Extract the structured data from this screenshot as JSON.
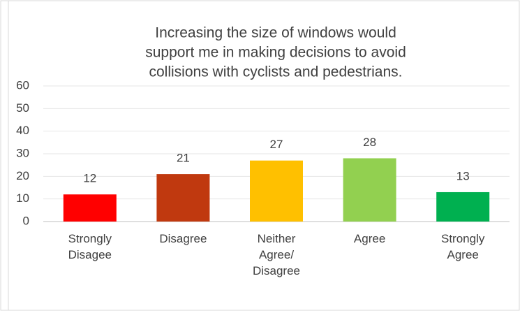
{
  "chart_data": {
    "type": "bar",
    "title": [
      "Increasing the size of windows would",
      "support me in making decisions to avoid",
      "collisions with cyclists and pedestrians."
    ],
    "categories": [
      [
        "Strongly",
        "Disagee"
      ],
      [
        "Disagree"
      ],
      [
        "Neither",
        "Agree/",
        "Disagree"
      ],
      [
        "Agree"
      ],
      [
        "Strongly",
        "Agree"
      ]
    ],
    "values": [
      12,
      21,
      27,
      28,
      13
    ],
    "colors": [
      "#ff0000",
      "#c0390f",
      "#ffc000",
      "#92d050",
      "#00b050"
    ],
    "ylim": [
      0,
      60
    ],
    "yticks": [
      0,
      10,
      20,
      30,
      40,
      50,
      60
    ],
    "grid": true
  }
}
